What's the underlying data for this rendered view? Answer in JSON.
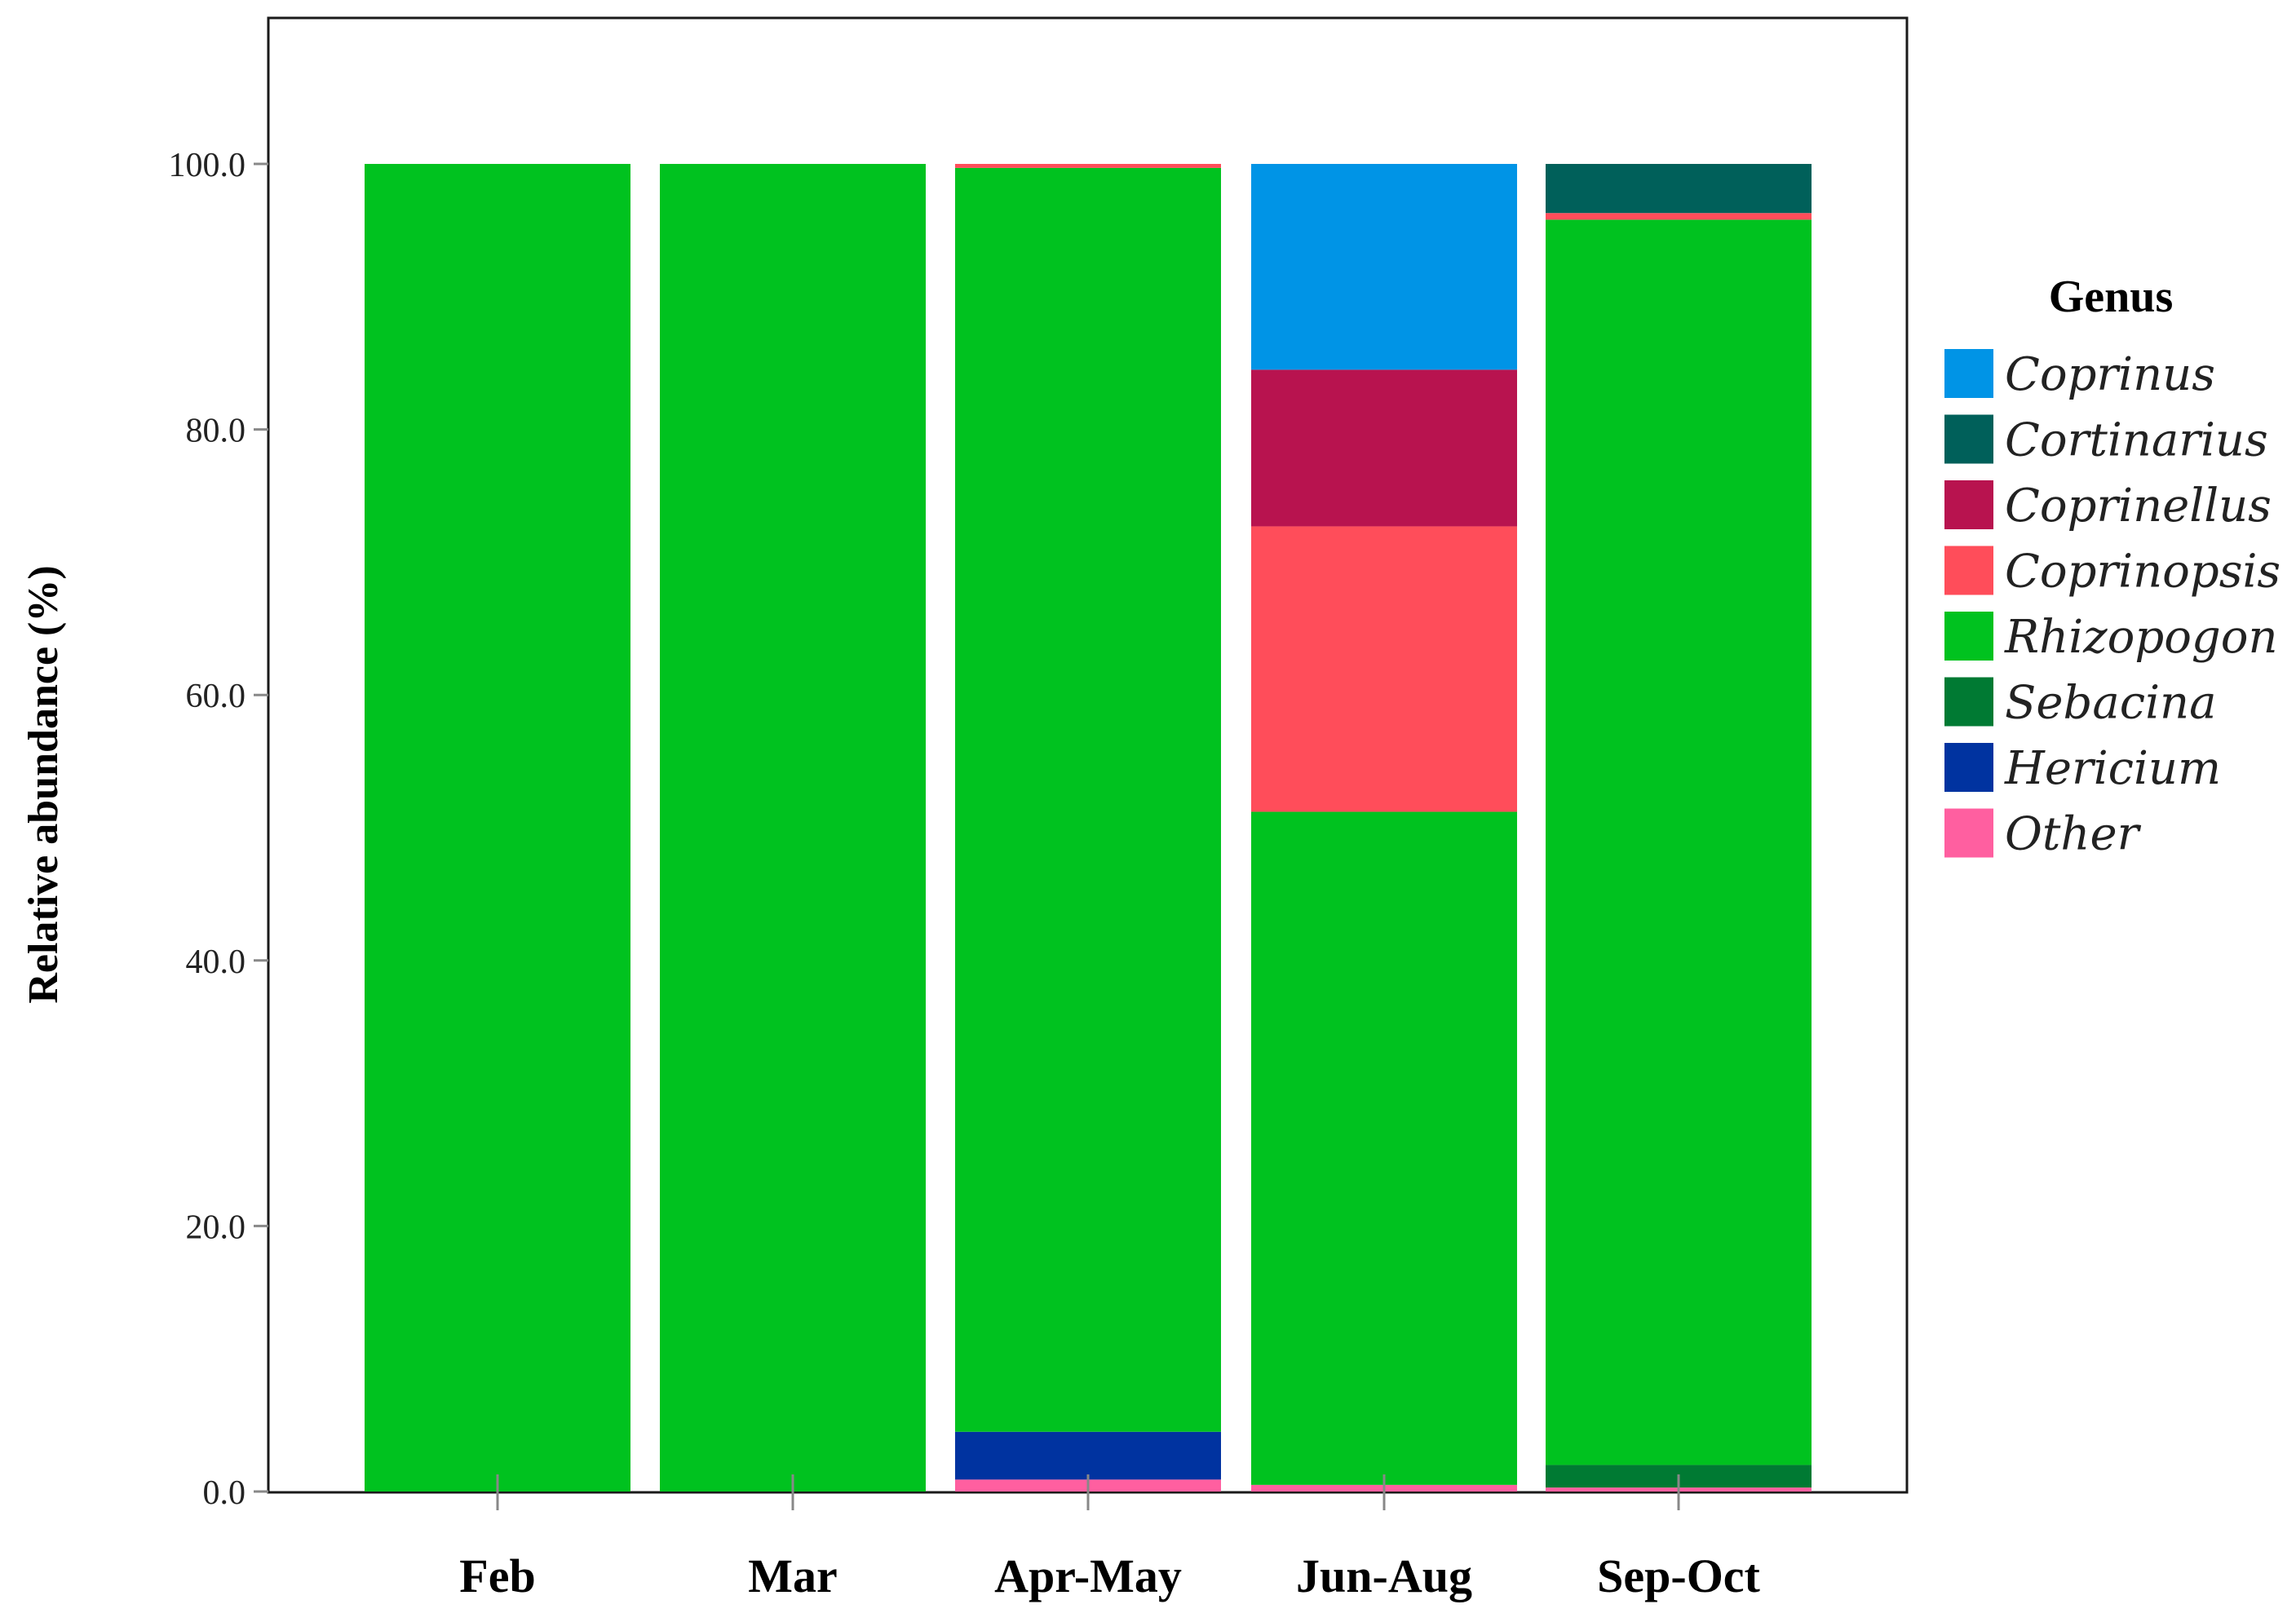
{
  "chart_data": {
    "type": "bar",
    "stacked": true,
    "title": "",
    "xlabel": "",
    "ylabel": "Relative abundance (%)",
    "ylim": [
      0,
      110
    ],
    "yticks": [
      0,
      20,
      40,
      60,
      80,
      100
    ],
    "ytick_labels": [
      "0.0",
      "20.0",
      "40.0",
      "60.0",
      "80.0",
      "100.0"
    ],
    "categories": [
      "Feb",
      "Mar",
      "Apr-May",
      "Jun-Aug",
      "Sep-Oct"
    ],
    "grid": false,
    "legend_title": "Genus",
    "legend_position": "right",
    "series": [
      {
        "name": "Other",
        "color": "#ff5fa0",
        "values": [
          0,
          0,
          0.9,
          0.5,
          0.3
        ]
      },
      {
        "name": "Hericium",
        "color": "#0033a0",
        "values": [
          0,
          0,
          3.6,
          0,
          0
        ]
      },
      {
        "name": "Sebacina",
        "color": "#007a33",
        "values": [
          0,
          0,
          0,
          0,
          1.7
        ]
      },
      {
        "name": "Rhizopogon",
        "color": "#00c21f",
        "values": [
          100,
          100,
          95.2,
          50.7,
          93.8
        ]
      },
      {
        "name": "Coprinopsis",
        "color": "#ff4d5a",
        "values": [
          0,
          0,
          0.3,
          21.5,
          0.5
        ]
      },
      {
        "name": "Coprinellus",
        "color": "#b8134f",
        "values": [
          0,
          0,
          0,
          11.8,
          0
        ]
      },
      {
        "name": "Cortinarius",
        "color": "#00605a",
        "values": [
          0,
          0,
          0,
          0,
          3.7
        ]
      },
      {
        "name": "Coprinus",
        "color": "#0094e6",
        "values": [
          0,
          0,
          0,
          15.5,
          0
        ]
      }
    ],
    "legend_order": [
      "Coprinus",
      "Cortinarius",
      "Coprinellus",
      "Coprinopsis",
      "Rhizopogon",
      "Sebacina",
      "Hericium",
      "Other"
    ]
  }
}
